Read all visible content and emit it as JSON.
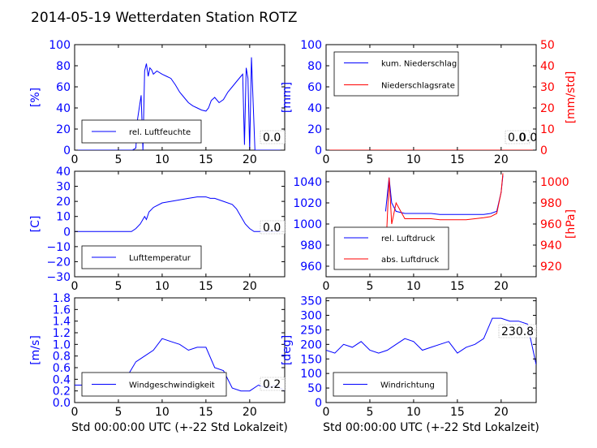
{
  "title": "2014-05-19 Wetterdaten Station ROTZ",
  "colors": {
    "blue": "#0000ff",
    "red": "#ff0000",
    "black": "#000000"
  },
  "chart_data": [
    {
      "type": "line",
      "x": [
        0,
        2,
        4,
        6,
        6.6,
        7.0,
        7.2,
        7.6,
        7.8,
        8.0,
        8.2,
        8.4,
        8.6,
        8.8,
        9.0,
        9.4,
        10,
        10.5,
        11,
        11.5,
        12,
        12.5,
        13,
        13.5,
        14,
        14.5,
        15,
        15.3,
        15.6,
        16,
        16.5,
        17,
        17.5,
        18,
        18.5,
        19,
        19.2,
        19.4,
        19.6,
        19.8,
        20,
        20.2,
        20.6,
        21,
        22,
        23.5
      ],
      "series": [
        {
          "name": "rel. Luftfeuchte",
          "values": [
            0,
            0,
            0,
            0,
            0,
            2,
            30,
            52,
            0,
            75,
            82,
            70,
            78,
            76,
            72,
            75,
            72,
            70,
            68,
            62,
            55,
            50,
            45,
            42,
            40,
            38,
            37,
            40,
            47,
            50,
            45,
            48,
            55,
            60,
            65,
            70,
            72,
            5,
            78,
            68,
            0,
            88,
            0,
            0,
            0,
            0
          ]
        }
      ],
      "ylabel": "[%]",
      "ylim": [
        0,
        100
      ],
      "xlim": [
        0,
        24
      ],
      "xticks": [
        "0",
        "5",
        "10",
        "15",
        "20"
      ],
      "yticks": [
        "0",
        "20",
        "40",
        "60",
        "80",
        "100"
      ],
      "annotation": "0.0"
    },
    {
      "type": "line",
      "x": [
        0,
        24
      ],
      "series": [
        {
          "name": "kum. Niederschlag",
          "values": [
            0,
            0
          ]
        },
        {
          "name": "Niederschlagsrate",
          "values": [
            0,
            0
          ]
        }
      ],
      "ylabel": "[mm]",
      "ylabel_right": "[mm/std]",
      "ylim": [
        0,
        100
      ],
      "ylim_right": [
        0,
        50
      ],
      "xlim": [
        0,
        24
      ],
      "xticks": [
        "0",
        "5",
        "10",
        "15",
        "20"
      ],
      "yticks": [
        "0",
        "20",
        "40",
        "60",
        "80",
        "100"
      ],
      "yticks_right": [
        "0",
        "10",
        "20",
        "30",
        "40",
        "50"
      ],
      "annotation": "0.0",
      "annotation2": "0.0"
    },
    {
      "type": "line",
      "x": [
        0,
        2,
        4,
        6,
        6.5,
        7,
        7.5,
        8,
        8.2,
        8.5,
        9,
        10,
        11,
        12,
        13,
        14,
        15,
        15.5,
        16,
        17,
        18,
        18.5,
        19,
        19.5,
        20,
        20.5,
        21,
        22,
        23.5
      ],
      "series": [
        {
          "name": "Lufttemperatur",
          "values": [
            0,
            0,
            0,
            0,
            0,
            2,
            5,
            10,
            8,
            13,
            16,
            19,
            20,
            21,
            22,
            23,
            23,
            22,
            22,
            20,
            18,
            15,
            10,
            5,
            2,
            0,
            0,
            0,
            0
          ]
        }
      ],
      "ylabel": "[C]",
      "ylim": [
        -30,
        40
      ],
      "xlim": [
        0,
        24
      ],
      "xticks": [
        "0",
        "5",
        "10",
        "15",
        "20"
      ],
      "yticks": [
        "−30",
        "−20",
        "−10",
        "0",
        "10",
        "20",
        "30",
        "40"
      ],
      "annotation": "0.0"
    },
    {
      "type": "line",
      "x": [
        6.8,
        7.2,
        7.5,
        8,
        9,
        10,
        11,
        12,
        13,
        14,
        15,
        16,
        17,
        18,
        18.8,
        19.5,
        20,
        20.2
      ],
      "series": [
        {
          "name": "rel. Luftdruck",
          "values": [
            1012,
            1044,
            1020,
            1012,
            1010,
            1010,
            1010,
            1010,
            1009,
            1009,
            1009,
            1009,
            1009,
            1009,
            1010,
            1012,
            1030,
            1046
          ]
        },
        {
          "name": "abs. Luftdruck",
          "values": [
            930,
            1004,
            960,
            980,
            965,
            965,
            965,
            965,
            964,
            964,
            964,
            964,
            965,
            966,
            967,
            970,
            990,
            1008
          ]
        }
      ],
      "ylabel": "",
      "ylabel_right": "[hPa]",
      "ylim": [
        950,
        1050
      ],
      "ylim_right": [
        910,
        1010
      ],
      "xlim": [
        0,
        24
      ],
      "xticks": [
        "0",
        "5",
        "10",
        "15",
        "20"
      ],
      "yticks": [
        "960",
        "980",
        "1000",
        "1020",
        "1040"
      ],
      "yticks_right": [
        "920",
        "940",
        "960",
        "980",
        "1000"
      ]
    },
    {
      "type": "line",
      "x": [
        0,
        1,
        2,
        3,
        4,
        5,
        6,
        7,
        8,
        9,
        10,
        11,
        12,
        13,
        14,
        15,
        16,
        17,
        18,
        19,
        20,
        21,
        22,
        23,
        24
      ],
      "series": [
        {
          "name": "Windgeschwindigkeit",
          "values": [
            0.3,
            0.3,
            0.35,
            0.4,
            0.45,
            0.4,
            0.45,
            0.7,
            0.8,
            0.9,
            1.1,
            1.05,
            1.0,
            0.9,
            0.95,
            0.95,
            0.6,
            0.55,
            0.25,
            0.2,
            0.2,
            0.3,
            0.25,
            0.3,
            0.2
          ]
        }
      ],
      "ylabel": "[m/s]",
      "xlabel": "Std 00:00:00 UTC (+-22 Std Lokalzeit)",
      "ylim": [
        0,
        1.8
      ],
      "xlim": [
        0,
        24
      ],
      "xticks": [
        "0",
        "5",
        "10",
        "15",
        "20"
      ],
      "yticks": [
        "0.0",
        "0.2",
        "0.4",
        "0.6",
        "0.8",
        "1.0",
        "1.2",
        "1.4",
        "1.6",
        "1.8"
      ],
      "annotation": "0.2"
    },
    {
      "type": "line",
      "x": [
        0,
        1,
        2,
        3,
        4,
        5,
        6,
        7,
        8,
        9,
        10,
        11,
        12,
        13,
        14,
        15,
        16,
        17,
        18,
        19,
        20,
        21,
        22,
        23,
        24
      ],
      "series": [
        {
          "name": "Windrichtung",
          "values": [
            180,
            170,
            200,
            190,
            210,
            180,
            170,
            180,
            200,
            220,
            210,
            180,
            190,
            200,
            210,
            170,
            190,
            200,
            220,
            290,
            290,
            280,
            280,
            270,
            130
          ]
        }
      ],
      "ylabel": "[deg]",
      "xlabel": "Std 00:00:00 UTC (+-22 Std Lokalzeit)",
      "ylim": [
        0,
        360
      ],
      "xlim": [
        0,
        24
      ],
      "xticks": [
        "0",
        "5",
        "10",
        "15",
        "20"
      ],
      "yticks": [
        "0",
        "50",
        "100",
        "150",
        "200",
        "250",
        "300",
        "350"
      ],
      "annotation": "230.8"
    }
  ]
}
